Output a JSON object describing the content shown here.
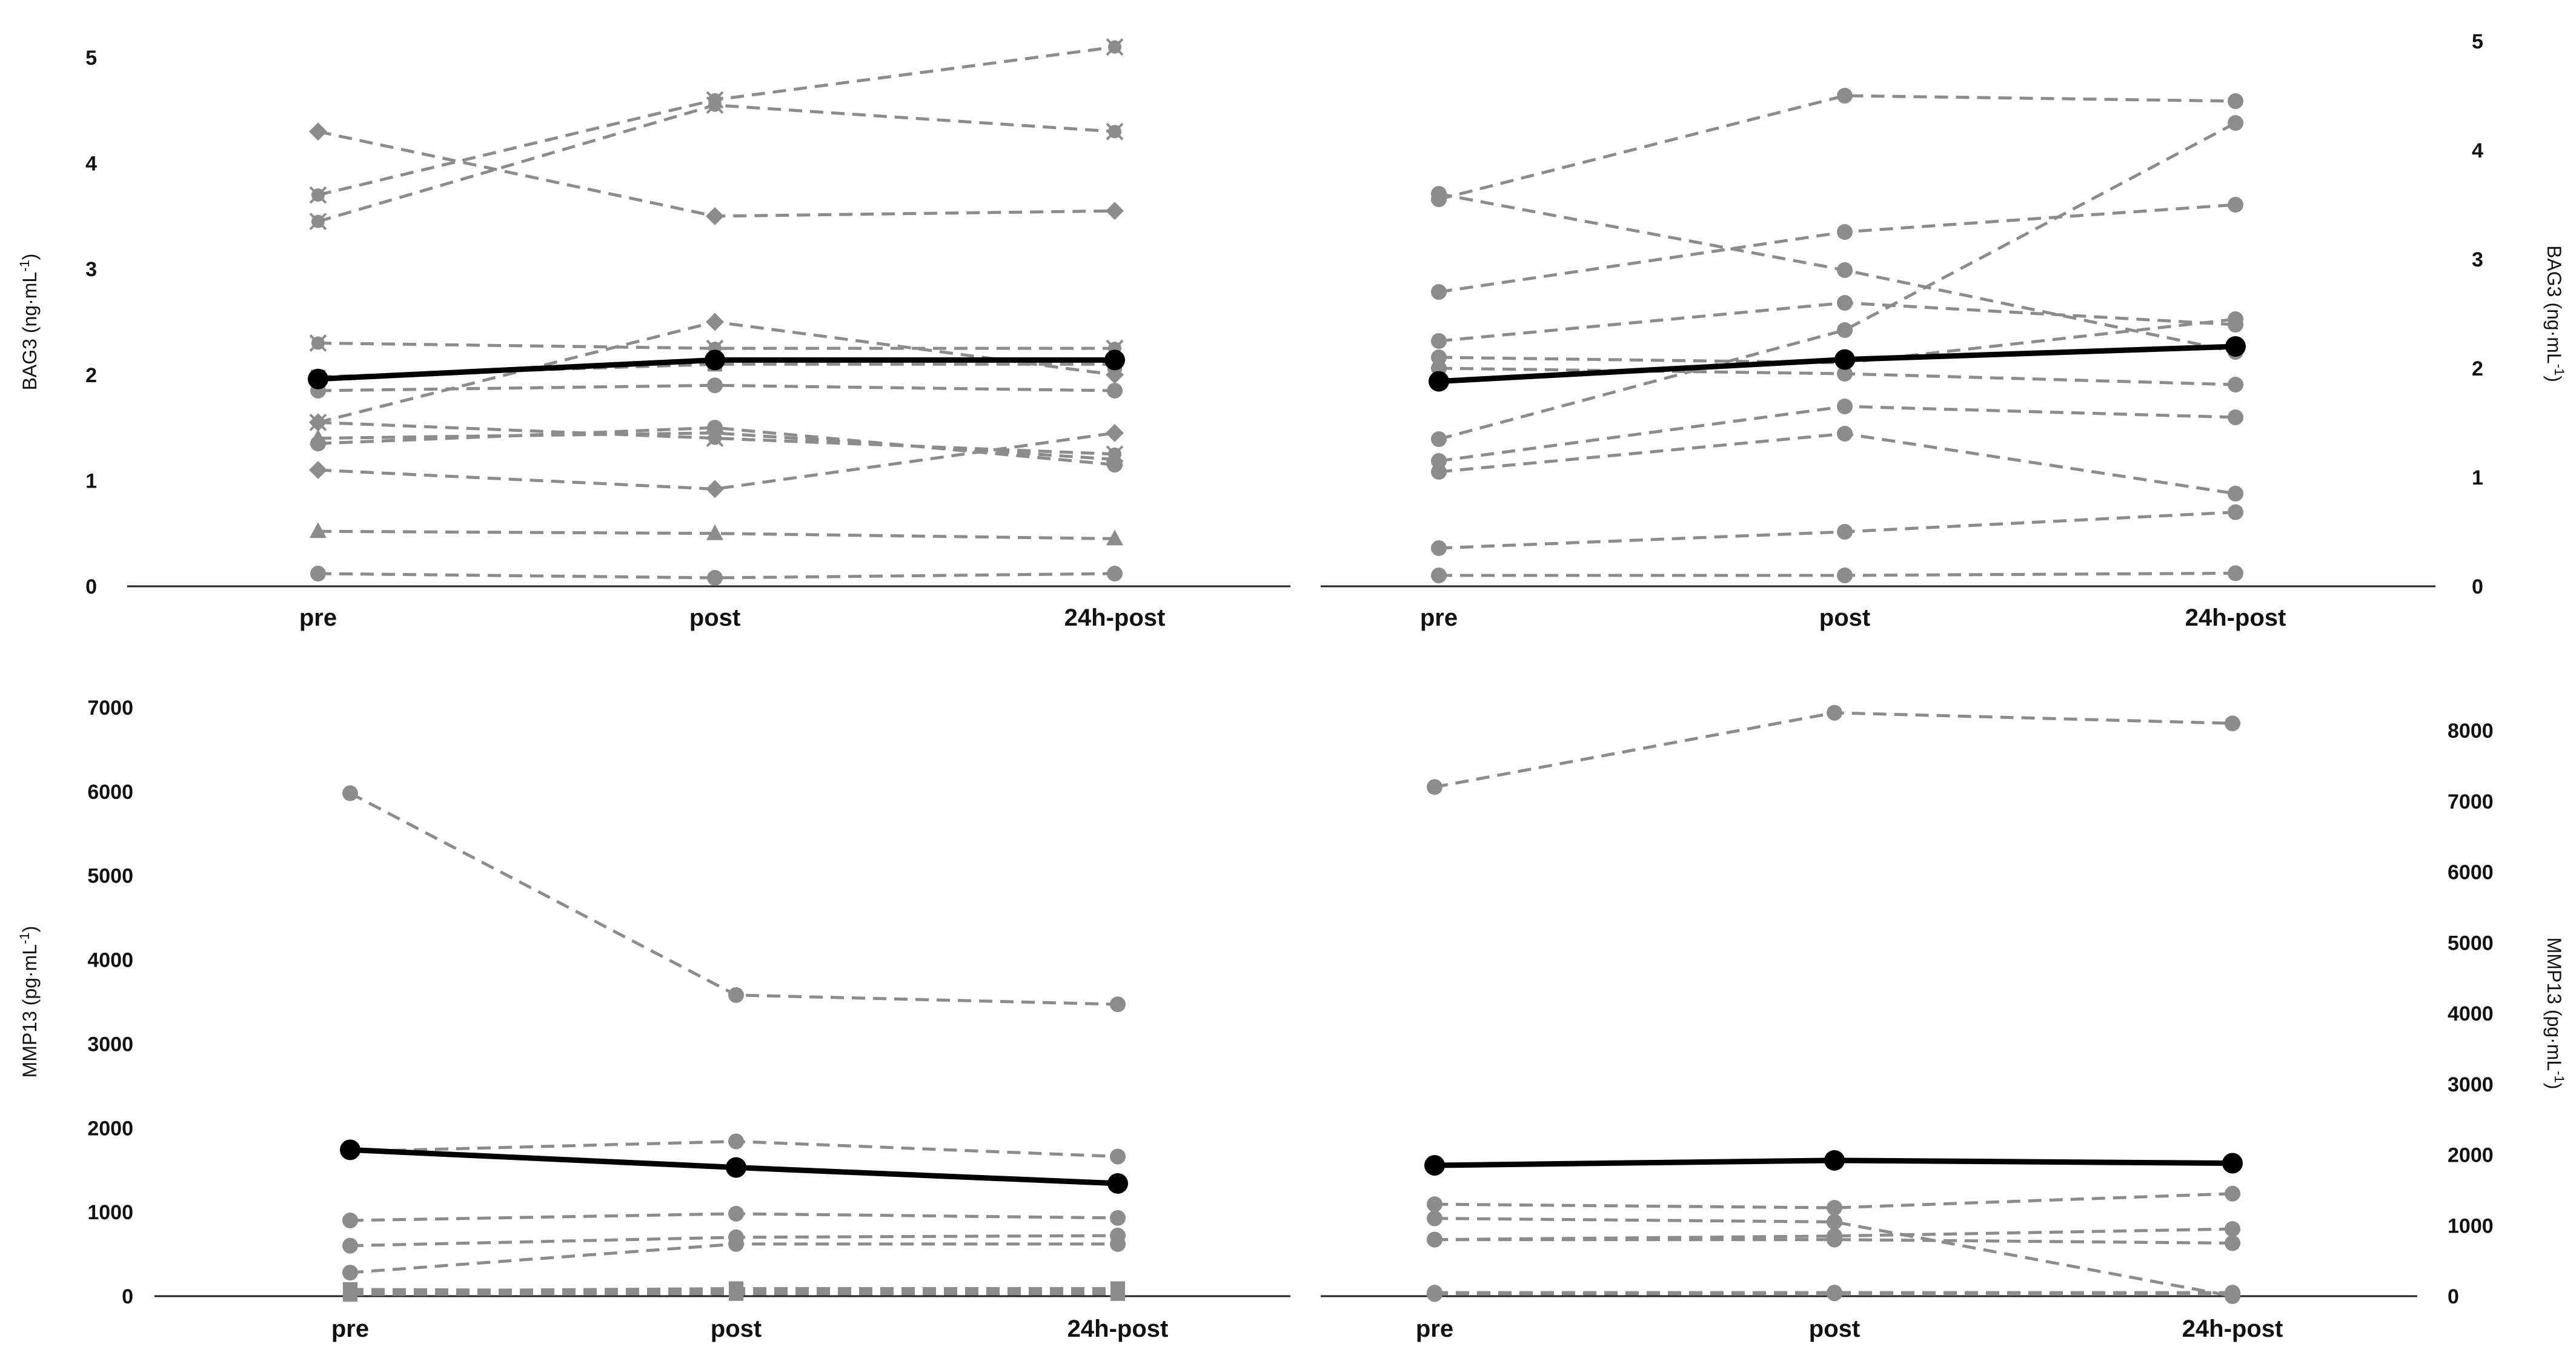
{
  "chart_data": [
    {
      "type": "line",
      "panel": "top-left",
      "categories": [
        "pre",
        "post",
        "24h-post"
      ],
      "ylabel_main": "BAG3 (ng·mL",
      "ylabel_sup": "-1",
      "ylabel_close": ")",
      "ylabel_side": "left",
      "ylim": [
        0,
        5
      ],
      "yticks": [
        "0",
        "1",
        "2",
        "3",
        "4",
        "5"
      ],
      "individual_series": [
        {
          "values": [
            3.7,
            4.6,
            5.1
          ],
          "marker": "x"
        },
        {
          "values": [
            3.45,
            4.55,
            4.3
          ],
          "marker": "x"
        },
        {
          "values": [
            4.3,
            3.5,
            3.55
          ],
          "marker": "diamond"
        },
        {
          "values": [
            2.3,
            2.25,
            2.25
          ],
          "marker": "x"
        },
        {
          "values": [
            1.55,
            2.5,
            2.0
          ],
          "marker": "diamond"
        },
        {
          "values": [
            1.85,
            1.9,
            1.85
          ],
          "marker": "circle"
        },
        {
          "values": [
            1.55,
            1.4,
            1.25
          ],
          "marker": "x"
        },
        {
          "values": [
            1.35,
            1.5,
            1.15
          ],
          "marker": "circle"
        },
        {
          "values": [
            1.1,
            0.92,
            1.45
          ],
          "marker": "diamond"
        },
        {
          "values": [
            1.4,
            1.45,
            1.2
          ],
          "marker": "triangle"
        },
        {
          "values": [
            0.52,
            0.5,
            0.45
          ],
          "marker": "triangle"
        },
        {
          "values": [
            0.12,
            0.08,
            0.12
          ],
          "marker": "circle"
        },
        {
          "values": [
            1.98,
            2.1,
            2.1
          ],
          "marker": "square"
        }
      ],
      "mean_series": {
        "values": [
          1.96,
          2.14,
          2.14
        ]
      },
      "colors": {
        "individual": "#8c8c8c",
        "mean": "#000000"
      }
    },
    {
      "type": "line",
      "panel": "top-right",
      "categories": [
        "pre",
        "post",
        "24h-post"
      ],
      "ylabel_main": "BAG3 (ng·mL",
      "ylabel_sup": "-1",
      "ylabel_close": ")",
      "ylabel_side": "right",
      "ylim": [
        0,
        5
      ],
      "yticks": [
        "0",
        "1",
        "2",
        "3",
        "4",
        "5"
      ],
      "individual_series": [
        {
          "values": [
            3.55,
            4.5,
            4.45
          ],
          "marker": "circle"
        },
        {
          "values": [
            3.6,
            2.9,
            2.15
          ],
          "marker": "circle"
        },
        {
          "values": [
            2.7,
            3.25,
            3.5
          ],
          "marker": "circle"
        },
        {
          "values": [
            2.25,
            2.6,
            2.4
          ],
          "marker": "circle"
        },
        {
          "values": [
            2.1,
            2.05,
            2.45
          ],
          "marker": "circle"
        },
        {
          "values": [
            2.0,
            1.95,
            1.85
          ],
          "marker": "circle"
        },
        {
          "values": [
            1.35,
            2.35,
            4.25
          ],
          "marker": "circle"
        },
        {
          "values": [
            1.15,
            1.65,
            1.55
          ],
          "marker": "circle"
        },
        {
          "values": [
            1.05,
            1.4,
            0.85
          ],
          "marker": "circle"
        },
        {
          "values": [
            0.35,
            0.5,
            0.68
          ],
          "marker": "circle"
        },
        {
          "values": [
            0.1,
            0.1,
            0.12
          ],
          "marker": "circle"
        }
      ],
      "mean_series": {
        "values": [
          1.88,
          2.08,
          2.2
        ]
      },
      "colors": {
        "individual": "#8c8c8c",
        "mean": "#000000"
      }
    },
    {
      "type": "line",
      "panel": "bottom-left",
      "categories": [
        "pre",
        "post",
        "24h-post"
      ],
      "ylabel_main": "MMP13 (pg·mL",
      "ylabel_sup": "-1",
      "ylabel_close": ")",
      "ylabel_side": "left",
      "ylim": [
        0,
        7000
      ],
      "yticks": [
        "0",
        "1000",
        "2000",
        "3000",
        "4000",
        "5000",
        "6000",
        "7000"
      ],
      "individual_series": [
        {
          "values": [
            5980,
            3580,
            3470
          ],
          "marker": "circle"
        },
        {
          "values": [
            1720,
            1840,
            1660
          ],
          "marker": "circle"
        },
        {
          "values": [
            900,
            980,
            930
          ],
          "marker": "circle"
        },
        {
          "values": [
            600,
            700,
            720
          ],
          "marker": "circle"
        },
        {
          "values": [
            280,
            620,
            620
          ],
          "marker": "circle"
        },
        {
          "values": [
            80,
            60,
            70
          ],
          "marker": "square"
        },
        {
          "values": [
            60,
            90,
            90
          ],
          "marker": "square"
        },
        {
          "values": [
            40,
            40,
            50
          ],
          "marker": "square"
        },
        {
          "values": [
            20,
            30,
            30
          ],
          "marker": "square"
        }
      ],
      "mean_series": {
        "values": [
          1740,
          1530,
          1340
        ]
      },
      "colors": {
        "individual": "#8c8c8c",
        "mean": "#000000"
      }
    },
    {
      "type": "line",
      "panel": "bottom-right",
      "categories": [
        "pre",
        "post",
        "24h-post"
      ],
      "ylabel_main": "MMP13 (pg·mL",
      "ylabel_sup": "-1",
      "ylabel_close": ")",
      "ylabel_side": "right",
      "ylim": [
        0,
        8000
      ],
      "yticks": [
        "0",
        "1000",
        "2000",
        "3000",
        "4000",
        "5000",
        "6000",
        "7000",
        "8000"
      ],
      "individual_series": [
        {
          "values": [
            7200,
            8250,
            8100
          ],
          "marker": "circle"
        },
        {
          "values": [
            1300,
            1250,
            1450
          ],
          "marker": "circle"
        },
        {
          "values": [
            1100,
            1050,
            0
          ],
          "marker": "circle"
        },
        {
          "values": [
            800,
            850,
            950
          ],
          "marker": "circle"
        },
        {
          "values": [
            800,
            800,
            750
          ],
          "marker": "circle"
        },
        {
          "values": [
            50,
            50,
            50
          ],
          "marker": "circle"
        },
        {
          "values": [
            30,
            40,
            40
          ],
          "marker": "circle"
        }
      ],
      "mean_series": {
        "values": [
          1850,
          1920,
          1880
        ]
      },
      "colors": {
        "individual": "#8c8c8c",
        "mean": "#000000"
      }
    }
  ]
}
